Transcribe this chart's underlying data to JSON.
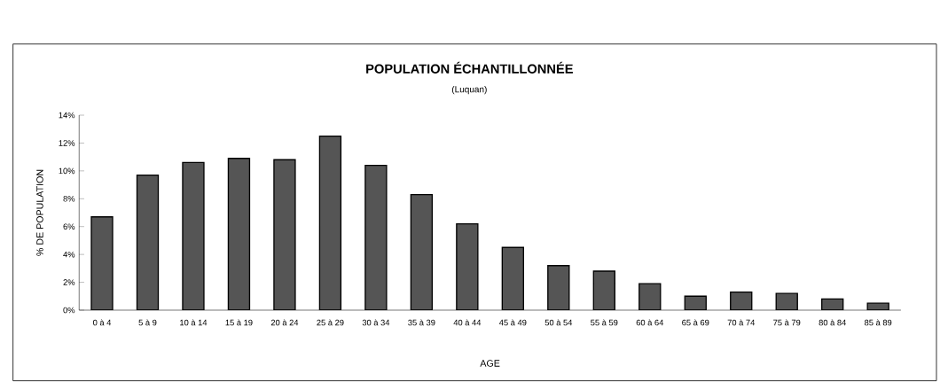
{
  "chart_data": {
    "type": "bar",
    "title": "POPULATION ÉCHANTILLONNÉE",
    "subtitle": "(Luquan)",
    "xlabel": "AGE",
    "ylabel": "% DE POPULATION",
    "categories": [
      "0 à 4",
      "5 à 9",
      "10 à 14",
      "15 à 19",
      "20 à 24",
      "25 à 29",
      "30 à 34",
      "35 à 39",
      "40 à 44",
      "45 à 49",
      "50 à 54",
      "55 à 59",
      "60 à 64",
      "65 à 69",
      "70 à 74",
      "75 à 79",
      "80 à 84",
      "85 à 89"
    ],
    "values": [
      6.7,
      9.7,
      10.6,
      10.9,
      10.8,
      12.5,
      10.4,
      8.3,
      6.2,
      4.5,
      3.2,
      2.8,
      1.9,
      1.0,
      1.3,
      1.2,
      0.8,
      0.5
    ],
    "color": "#555555",
    "ylim": [
      0,
      14
    ],
    "yticks": [
      {
        "value": 0,
        "label": "0%"
      },
      {
        "value": 2,
        "label": "2%"
      },
      {
        "value": 4,
        "label": "4%"
      },
      {
        "value": 6,
        "label": "6%"
      },
      {
        "value": 8,
        "label": "8%"
      },
      {
        "value": 10,
        "label": "10%"
      },
      {
        "value": 12,
        "label": "12%"
      },
      {
        "value": 14,
        "label": "14%"
      }
    ],
    "grid": false
  }
}
